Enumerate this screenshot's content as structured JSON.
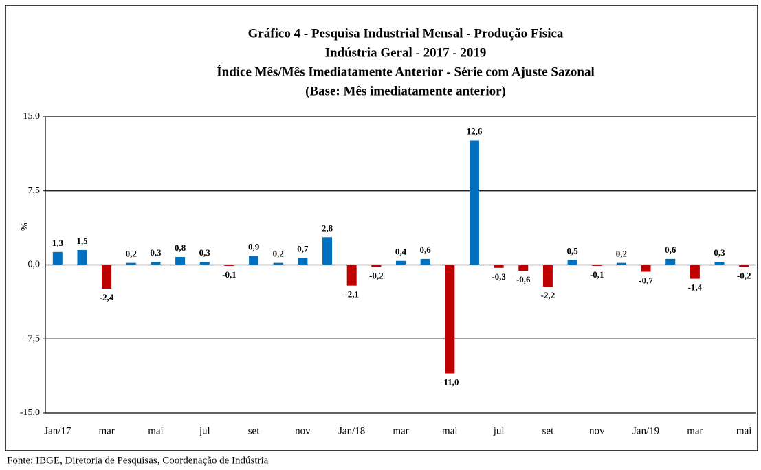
{
  "chart_data": {
    "type": "bar",
    "title": [
      "Gráfico 4 - Pesquisa Industrial Mensal - Produção Física",
      "Indústria Geral - 2017 - 2019",
      "Índice Mês/Mês Imediatamente Anterior - Série com Ajuste Sazonal",
      "(Base: Mês imediatamente anterior)"
    ],
    "ylabel": "%",
    "source": "Fonte: IBGE, Diretoria de Pesquisas, Coordenação de Indústria",
    "categories": [
      "Jan/17",
      null,
      "mar",
      null,
      "mai",
      null,
      "jul",
      null,
      "set",
      null,
      "nov",
      null,
      "Jan/18",
      null,
      "mar",
      null,
      "mai",
      null,
      "jul",
      null,
      "set",
      null,
      "nov",
      null,
      "Jan/19",
      null,
      "mar",
      null,
      "mai"
    ],
    "values": [
      1.3,
      1.5,
      -2.4,
      0.2,
      0.3,
      0.8,
      0.3,
      -0.1,
      0.9,
      0.2,
      0.7,
      2.8,
      -2.1,
      -0.2,
      0.4,
      0.6,
      -11.0,
      12.6,
      -0.3,
      -0.6,
      -2.2,
      0.5,
      -0.1,
      0.2,
      -0.7,
      0.6,
      -1.4,
      0.3,
      -0.2
    ],
    "value_labels": [
      "1,3",
      "1,5",
      "-2,4",
      "0,2",
      "0,3",
      "0,8",
      "0,3",
      "-0,1",
      "0,9",
      "0,2",
      "0,7",
      "2,8",
      "-2,1",
      "-0,2",
      "0,4",
      "0,6",
      "-11,0",
      "12,6",
      "-0,3",
      "-0,6",
      "-2,2",
      "0,5",
      "-0,1",
      "0,2",
      "-0,7",
      "0,6",
      "-1,4",
      "0,3",
      "-0,2"
    ],
    "positive_color": "#0070c0",
    "negative_color": "#c00000",
    "ylim": [
      -15,
      15
    ],
    "yticks": [
      {
        "value": -15,
        "label": "-15,0"
      },
      {
        "value": -7.5,
        "label": "-7,5"
      },
      {
        "value": 0,
        "label": "0,0"
      },
      {
        "value": 7.5,
        "label": "7,5"
      },
      {
        "value": 15,
        "label": "15,0"
      }
    ],
    "grid": true
  }
}
